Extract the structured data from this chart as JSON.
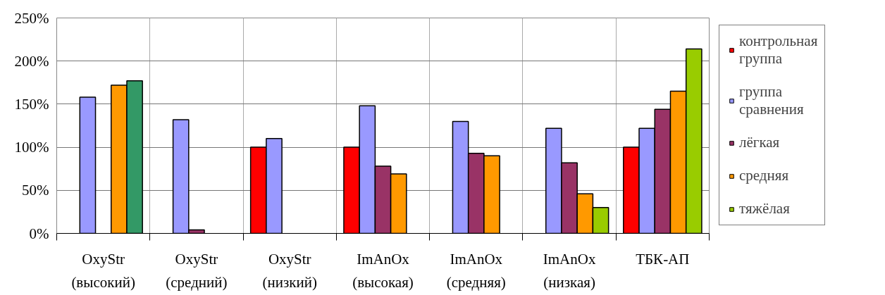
{
  "chart_data": {
    "type": "bar",
    "categories": [
      "OxyStr\n(высокий)",
      "OxyStr\n(средний)",
      "OxyStr\n(низкий)",
      "ImAnOx\n(высокая)",
      "ImAnOx\n(средняя)",
      "ImAnOx\n(низкая)",
      "ТБК-АП"
    ],
    "series": [
      {
        "name": "контрольная группа",
        "color": "#ff0000",
        "values": [
          null,
          null,
          100,
          100,
          null,
          null,
          100
        ]
      },
      {
        "name": "группа сравнения",
        "color": "#9999ff",
        "values": [
          158,
          132,
          110,
          148,
          130,
          122,
          122
        ]
      },
      {
        "name": "лёгкая",
        "color": "#993366",
        "values": [
          null,
          4,
          null,
          78,
          93,
          82,
          144
        ]
      },
      {
        "name": "средняя",
        "color": "#ff9900",
        "values": [
          172,
          null,
          null,
          69,
          90,
          46,
          165
        ]
      },
      {
        "name": "тяжёлая",
        "color": "#99cc00",
        "colors": [
          "#339966",
          "#99cc00",
          "#99cc00",
          "#99cc00",
          "#99cc00",
          "#99cc00",
          "#99cc00"
        ],
        "values": [
          177,
          null,
          null,
          null,
          null,
          30,
          214
        ]
      }
    ],
    "ylim": [
      0,
      250
    ],
    "yticks": [
      {
        "value": 0,
        "label": "0%"
      },
      {
        "value": 50,
        "label": "50%"
      },
      {
        "value": 100,
        "label": "100%"
      },
      {
        "value": 150,
        "label": "150%"
      },
      {
        "value": 200,
        "label": "200%"
      },
      {
        "value": 250,
        "label": "250%"
      }
    ],
    "grid": true,
    "legend": "right"
  }
}
